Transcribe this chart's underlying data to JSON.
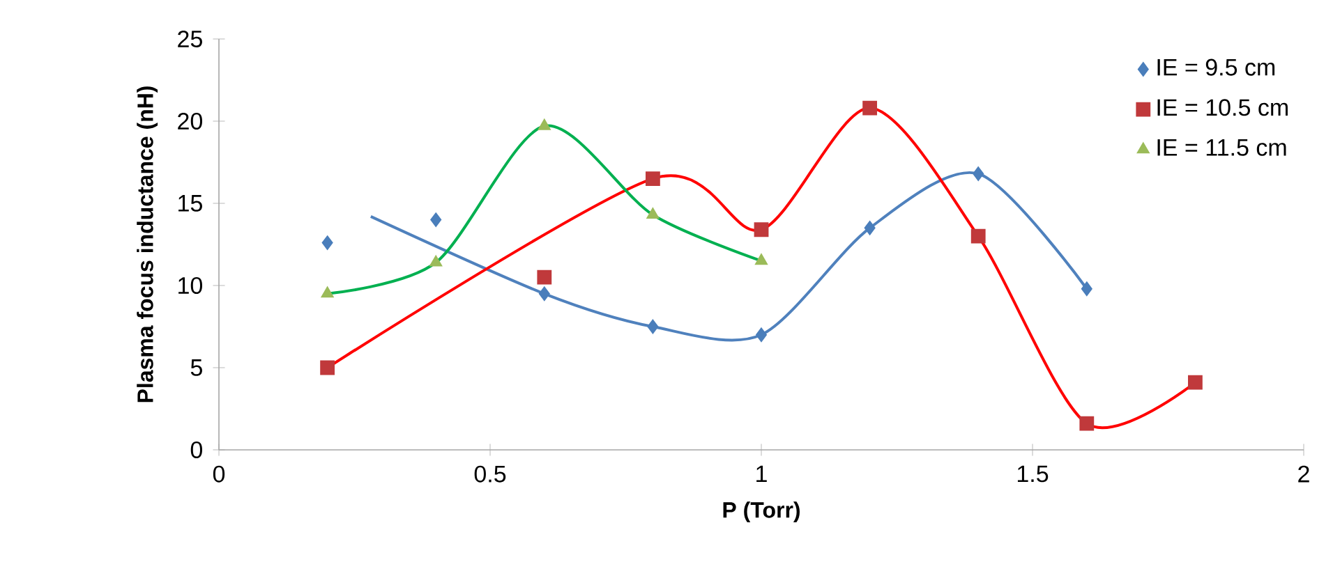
{
  "chart_data": {
    "type": "scatter",
    "xlabel": "P (Torr)",
    "ylabel": "Plasma focus inductance (nH)",
    "xlim": [
      0,
      2
    ],
    "xticks": [
      0,
      0.5,
      1,
      1.5,
      2
    ],
    "ylim": [
      0,
      25
    ],
    "yticks": [
      0,
      5,
      10,
      15,
      20,
      25
    ],
    "legend": "top right",
    "grid": false,
    "series": [
      {
        "name": "IE = 9.5 cm",
        "marker": "diamond",
        "color": "#4a7ebb",
        "x": [
          0.2,
          0.4,
          0.6,
          0.8,
          1.0,
          1.2,
          1.4,
          1.6
        ],
        "values": [
          12.6,
          14,
          9.5,
          7.5,
          7,
          13.5,
          16.8,
          9.8
        ]
      },
      {
        "name": "IE = 10.5 cm",
        "marker": "square",
        "color": "#c0393b",
        "x": [
          0.2,
          0.6,
          0.8,
          1.0,
          1.2,
          1.4,
          1.6,
          1.8
        ],
        "values": [
          5,
          10.5,
          16.5,
          13.4,
          20.8,
          13,
          1.6,
          4.1
        ]
      },
      {
        "name": "IE = 11.5 cm",
        "marker": "triangle",
        "color": "#9bbb59",
        "x": [
          0.2,
          0.4,
          0.6,
          0.8,
          1.0
        ],
        "values": [
          9.5,
          11.4,
          19.7,
          14.3,
          11.5
        ]
      },
      {
        "type": "line",
        "marker": "none",
        "color": "#4f81bd",
        "x": [
          0.28,
          0.6,
          0.8,
          1.0,
          1.2,
          1.4,
          1.6
        ],
        "values": [
          14.2,
          9.5,
          7.5,
          7,
          13.5,
          16.8,
          9.8
        ]
      },
      {
        "type": "line",
        "marker": "none",
        "color": "#ff0000",
        "x": [
          0.2,
          0.8,
          1.0,
          1.2,
          1.4,
          1.6,
          1.8
        ],
        "values": [
          5,
          16.5,
          13.4,
          20.8,
          13,
          1.6,
          4.1
        ]
      },
      {
        "type": "line",
        "marker": "none",
        "color": "#00b050",
        "x": [
          0.2,
          0.4,
          0.6,
          0.8,
          1.0
        ],
        "values": [
          9.5,
          11.4,
          19.7,
          14.3,
          11.5
        ]
      }
    ]
  }
}
